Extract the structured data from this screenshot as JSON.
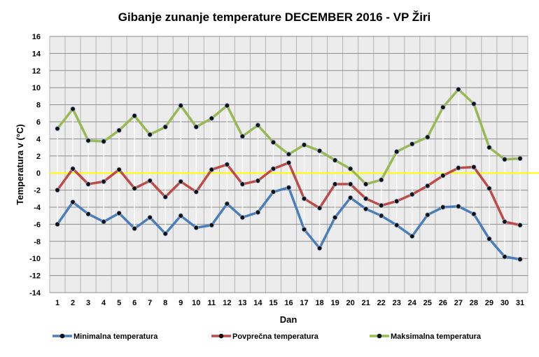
{
  "chart_data": {
    "type": "line",
    "title": "Gibanje zunanje temperature DECEMBER 2016 - VP Žiri",
    "xlabel": "Dan",
    "ylabel": "Temperatura v (°C)",
    "ylim": [
      -14,
      16
    ],
    "ytick_step": 2,
    "grid": true,
    "legend_position": "bottom",
    "reference_line": {
      "value": 0,
      "color": "#ffff00"
    },
    "categories": [
      "1",
      "2",
      "3",
      "4",
      "5",
      "6",
      "7",
      "8",
      "9",
      "10",
      "11",
      "12",
      "13",
      "14",
      "15",
      "16",
      "17",
      "18",
      "19",
      "20",
      "21",
      "22",
      "23",
      "24",
      "25",
      "26",
      "27",
      "28",
      "29",
      "30",
      "31"
    ],
    "series": [
      {
        "name": "Minimalna temperatura",
        "color": "#4a7ebb",
        "values": [
          -6.0,
          -3.4,
          -4.8,
          -5.7,
          -4.7,
          -6.5,
          -5.2,
          -7.1,
          -5.0,
          -6.4,
          -6.1,
          -3.6,
          -5.2,
          -4.6,
          -2.2,
          -1.7,
          -6.6,
          -8.8,
          -5.2,
          -2.9,
          -4.2,
          -5.0,
          -6.1,
          -7.4,
          -4.9,
          -4.0,
          -3.9,
          -4.8,
          -7.7,
          -9.8,
          -10.1
        ]
      },
      {
        "name": "Povprečna temperatura",
        "color": "#be4b48",
        "values": [
          -2.0,
          0.5,
          -1.3,
          -1.0,
          0.4,
          -1.8,
          -0.9,
          -2.8,
          -1.0,
          -2.2,
          0.4,
          1.0,
          -1.3,
          -0.9,
          0.5,
          1.2,
          -3.0,
          -4.1,
          -1.3,
          -1.3,
          -3.0,
          -3.8,
          -3.3,
          -2.5,
          -1.5,
          -0.3,
          0.6,
          0.7,
          -1.8,
          -5.7,
          -6.1
        ]
      },
      {
        "name": "Maksimalna temperatura",
        "color": "#98b954",
        "values": [
          5.2,
          7.5,
          3.8,
          3.7,
          5.0,
          6.7,
          4.5,
          5.4,
          7.9,
          5.4,
          6.4,
          7.9,
          4.3,
          5.6,
          3.6,
          2.2,
          3.3,
          2.6,
          1.5,
          0.5,
          -1.3,
          -0.8,
          2.5,
          3.4,
          4.2,
          7.7,
          9.8,
          8.1,
          3.0,
          1.6,
          1.7
        ]
      }
    ]
  }
}
